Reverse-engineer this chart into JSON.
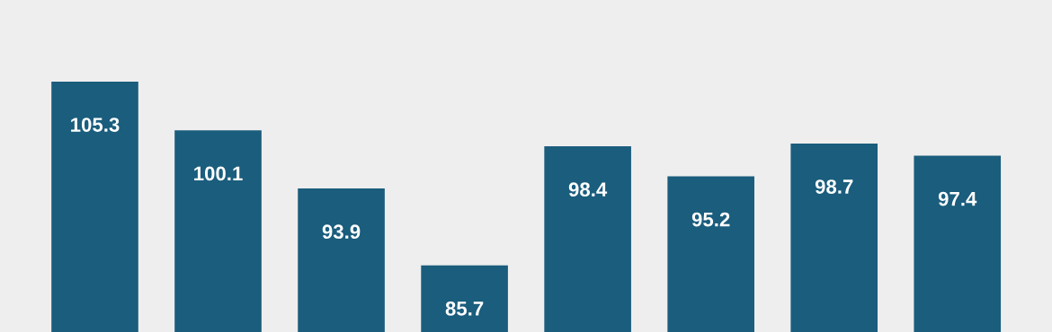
{
  "chart_data": {
    "type": "bar",
    "categories": [
      null,
      null,
      null,
      null,
      null,
      null,
      null,
      null
    ],
    "values": [
      105.3,
      100.1,
      93.9,
      85.7,
      98.4,
      95.2,
      98.7,
      97.4
    ],
    "color": "#1a5d7d",
    "ylim": [
      78.6,
      114.0
    ],
    "relative": false,
    "data_labels": true,
    "grid": false,
    "legend": false
  }
}
